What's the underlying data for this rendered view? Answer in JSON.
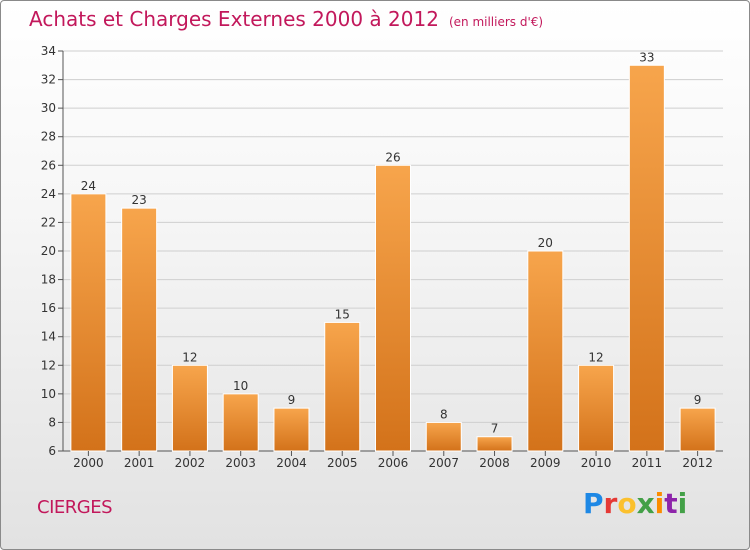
{
  "title": "Achats et Charges Externes 2000 à 2012",
  "subtitle": "(en milliers d'€)",
  "town": "CIERGES",
  "logo": {
    "letters": [
      "P",
      "r",
      "o",
      "x",
      "i",
      "t",
      "i"
    ]
  },
  "colors": {
    "title": "#c2185b",
    "bar_light": "#f7a54c",
    "bar_dark": "#d3721a",
    "grid": "#cfcfcf",
    "axis": "#555555"
  },
  "chart_data": {
    "type": "bar",
    "title": "Achats et Charges Externes 2000 à 2012",
    "xlabel": "",
    "ylabel": "",
    "categories": [
      "2000",
      "2001",
      "2002",
      "2003",
      "2004",
      "2005",
      "2006",
      "2007",
      "2008",
      "2009",
      "2010",
      "2011",
      "2012"
    ],
    "values": [
      24,
      23,
      12,
      10,
      9,
      15,
      26,
      8,
      7,
      20,
      12,
      33,
      9
    ],
    "ylim": [
      6,
      34
    ],
    "yticks": [
      6,
      8,
      10,
      12,
      14,
      16,
      18,
      20,
      22,
      24,
      26,
      28,
      30,
      32,
      34
    ],
    "grid": true,
    "data_labels": true
  }
}
